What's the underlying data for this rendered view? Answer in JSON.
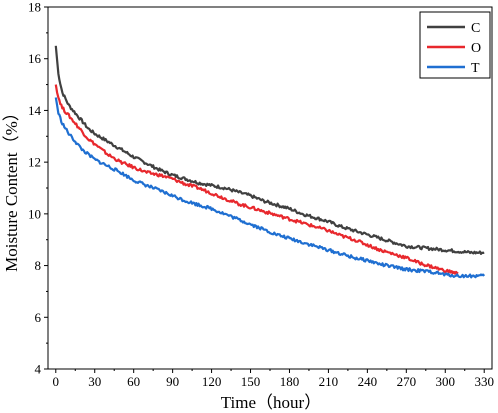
{
  "chart_data": {
    "type": "line",
    "title": "",
    "xlabel": "Time（hour）",
    "ylabel": "Moisture Content（%）",
    "xlim": [
      -6,
      336
    ],
    "ylim": [
      4,
      18
    ],
    "xticks": [
      "0",
      "30",
      "60",
      "90",
      "120",
      "150",
      "180",
      "210",
      "240",
      "270",
      "300",
      "330"
    ],
    "yticks": [
      "4",
      "6",
      "8",
      "10",
      "12",
      "14",
      "16",
      "18"
    ],
    "grid": false,
    "legend_position": "top-right",
    "series": [
      {
        "name": "C",
        "color": "#404040",
        "x": [
          0,
          2,
          5,
          10,
          15,
          20,
          25,
          30,
          40,
          50,
          60,
          70,
          80,
          90,
          100,
          110,
          120,
          130,
          140,
          150,
          160,
          170,
          180,
          190,
          200,
          210,
          220,
          230,
          240,
          250,
          260,
          270,
          280,
          290,
          300,
          310,
          320,
          330
        ],
        "y": [
          16.5,
          15.4,
          14.7,
          14.2,
          13.9,
          13.6,
          13.3,
          13.1,
          12.8,
          12.5,
          12.2,
          11.95,
          11.7,
          11.5,
          11.35,
          11.2,
          11.1,
          11.0,
          10.85,
          10.7,
          10.5,
          10.35,
          10.2,
          10.0,
          9.85,
          9.7,
          9.5,
          9.35,
          9.2,
          9.05,
          8.9,
          8.75,
          8.7,
          8.65,
          8.6,
          8.55,
          8.5,
          8.5
        ]
      },
      {
        "name": "O",
        "color": "#e8282d",
        "x": [
          0,
          2,
          5,
          10,
          15,
          20,
          25,
          30,
          40,
          50,
          60,
          70,
          80,
          90,
          100,
          110,
          120,
          130,
          140,
          150,
          160,
          170,
          180,
          190,
          200,
          210,
          220,
          230,
          240,
          250,
          260,
          270,
          280,
          290,
          300,
          305,
          310
        ],
        "y": [
          15.0,
          14.5,
          14.1,
          13.8,
          13.5,
          13.2,
          12.9,
          12.7,
          12.3,
          12.0,
          11.8,
          11.6,
          11.5,
          11.35,
          11.15,
          11.0,
          10.8,
          10.6,
          10.4,
          10.25,
          10.1,
          9.95,
          9.8,
          9.65,
          9.5,
          9.35,
          9.15,
          9.0,
          8.8,
          8.6,
          8.45,
          8.3,
          8.1,
          7.95,
          7.8,
          7.75,
          7.7
        ]
      },
      {
        "name": "T",
        "color": "#1f6fd1",
        "x": [
          0,
          2,
          5,
          10,
          15,
          20,
          25,
          30,
          40,
          50,
          60,
          70,
          80,
          90,
          100,
          110,
          120,
          130,
          140,
          150,
          160,
          170,
          180,
          190,
          200,
          210,
          220,
          230,
          240,
          250,
          260,
          270,
          280,
          290,
          300,
          310,
          320,
          330
        ],
        "y": [
          14.5,
          13.9,
          13.5,
          13.1,
          12.8,
          12.5,
          12.3,
          12.1,
          11.85,
          11.6,
          11.3,
          11.1,
          10.9,
          10.7,
          10.5,
          10.35,
          10.2,
          10.0,
          9.8,
          9.6,
          9.4,
          9.2,
          9.05,
          8.9,
          8.75,
          8.6,
          8.45,
          8.3,
          8.2,
          8.05,
          7.95,
          7.85,
          7.8,
          7.75,
          7.65,
          7.6,
          7.6,
          7.6
        ]
      }
    ]
  }
}
